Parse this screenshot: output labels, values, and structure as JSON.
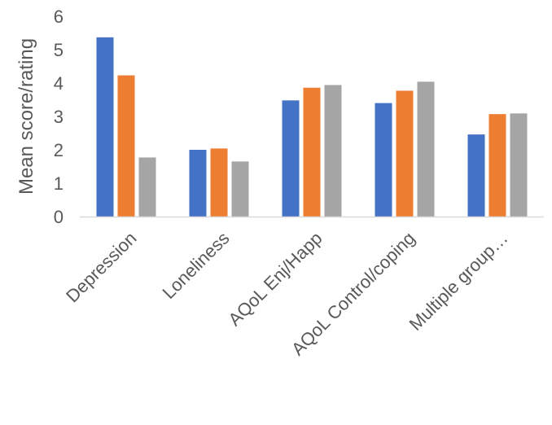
{
  "chart_data": {
    "type": "bar",
    "title": "",
    "xlabel": "",
    "ylabel": "Mean score/rating",
    "ylim": [
      0,
      6
    ],
    "yticks": [
      "0",
      "1",
      "2",
      "3",
      "4",
      "5",
      "6"
    ],
    "grid": false,
    "legend": "none",
    "categories": [
      "Depression",
      "Loneliness",
      "AQoL Enj/Happ",
      "AQoL Control/coping",
      "Multiple group…"
    ],
    "series": [
      {
        "color": "#4472C4",
        "values": [
          5.37,
          2.0,
          3.48,
          3.4,
          2.46
        ]
      },
      {
        "color": "#ED7D31",
        "values": [
          4.23,
          2.04,
          3.86,
          3.77,
          3.07
        ]
      },
      {
        "color": "#A5A5A5",
        "values": [
          1.77,
          1.65,
          3.94,
          4.04,
          3.09
        ]
      }
    ]
  }
}
